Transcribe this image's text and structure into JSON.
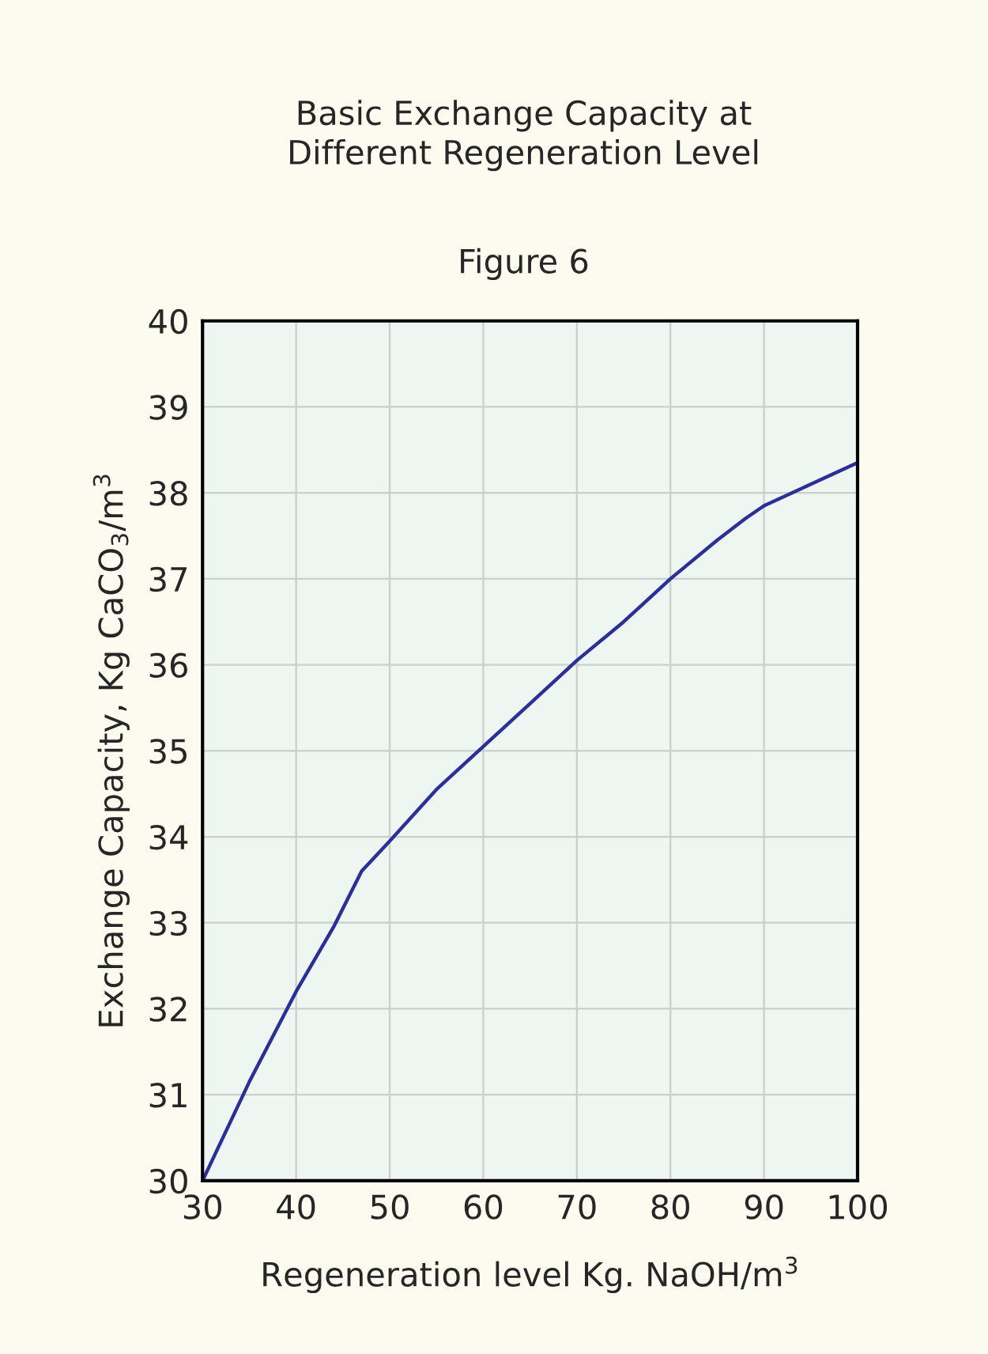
{
  "chart_data": {
    "type": "line",
    "title": "Basic Exchange Capacity at\nDifferent Regeneration Level",
    "subtitle": "Figure 6",
    "xlabel": "Regeneration level Kg. NaOH/m$^{3}$",
    "ylabel": "Exchange Capacity, Kg CaCO$_{3}$/m$^{3}$",
    "x": [
      30,
      35,
      40,
      44,
      47,
      50,
      55,
      60,
      65,
      70,
      75,
      80,
      85,
      88,
      90,
      95,
      100
    ],
    "series": [
      {
        "color": "#2b2f9a",
        "values": [
          30,
          31.15,
          32.2,
          32.95,
          33.6,
          33.95,
          34.55,
          35.05,
          35.55,
          36.05,
          36.5,
          37.0,
          37.45,
          37.7,
          37.85,
          38.1,
          38.35
        ]
      }
    ],
    "xlim": [
      30,
      100
    ],
    "ylim": [
      30,
      40
    ],
    "xticks": [
      30,
      40,
      50,
      60,
      70,
      80,
      90,
      100
    ],
    "yticks": [
      30,
      31,
      32,
      33,
      34,
      35,
      36,
      37,
      38,
      39,
      40
    ],
    "grid": true,
    "marker": "none",
    "line_style": "solid",
    "legend": false
  }
}
